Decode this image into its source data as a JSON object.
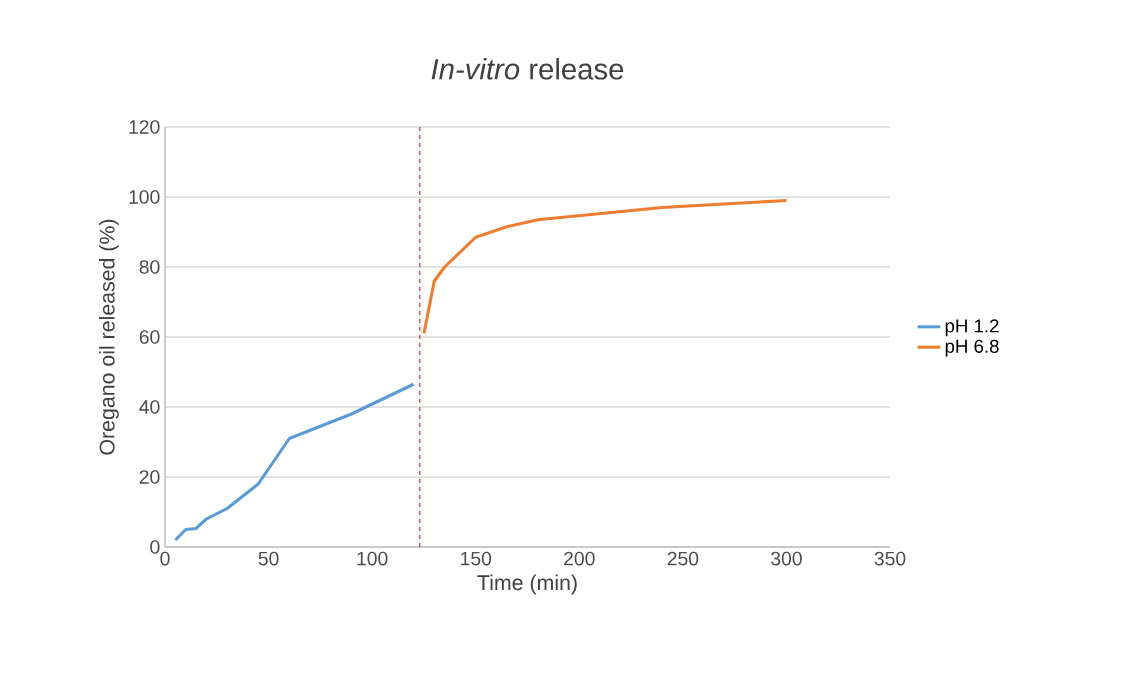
{
  "chart_data": {
    "type": "line",
    "title": "*In-vitro* release",
    "xlabel": "Time (min)",
    "ylabel": "Oregano oil released (%)",
    "xlim": [
      0,
      350
    ],
    "xticks": [
      0,
      50,
      100,
      150,
      200,
      250,
      300,
      350
    ],
    "ylim": [
      0,
      120
    ],
    "yticks": [
      0,
      20,
      40,
      60,
      80,
      100,
      120
    ],
    "grid": "y",
    "legend": "right",
    "line_style": "solid",
    "marker": "none",
    "ref_lines": [
      {
        "axis": "x",
        "value": 123,
        "color": "#c0504d",
        "line_style": "dashed"
      }
    ],
    "series": [
      {
        "name": "pH 1.2",
        "color": "#5b9bd5",
        "x": [
          5,
          10,
          15,
          20,
          30,
          45,
          60,
          90,
          120
        ],
        "values": [
          2,
          5,
          5.3,
          8,
          11,
          18,
          31,
          38,
          46.5
        ]
      },
      {
        "name": "pH 6.8",
        "color": "#ed7d31",
        "x": [
          125,
          130,
          135,
          150,
          165,
          180,
          240,
          300
        ],
        "values": [
          61,
          76,
          80,
          88.5,
          91.5,
          93.5,
          97,
          99
        ]
      }
    ]
  }
}
